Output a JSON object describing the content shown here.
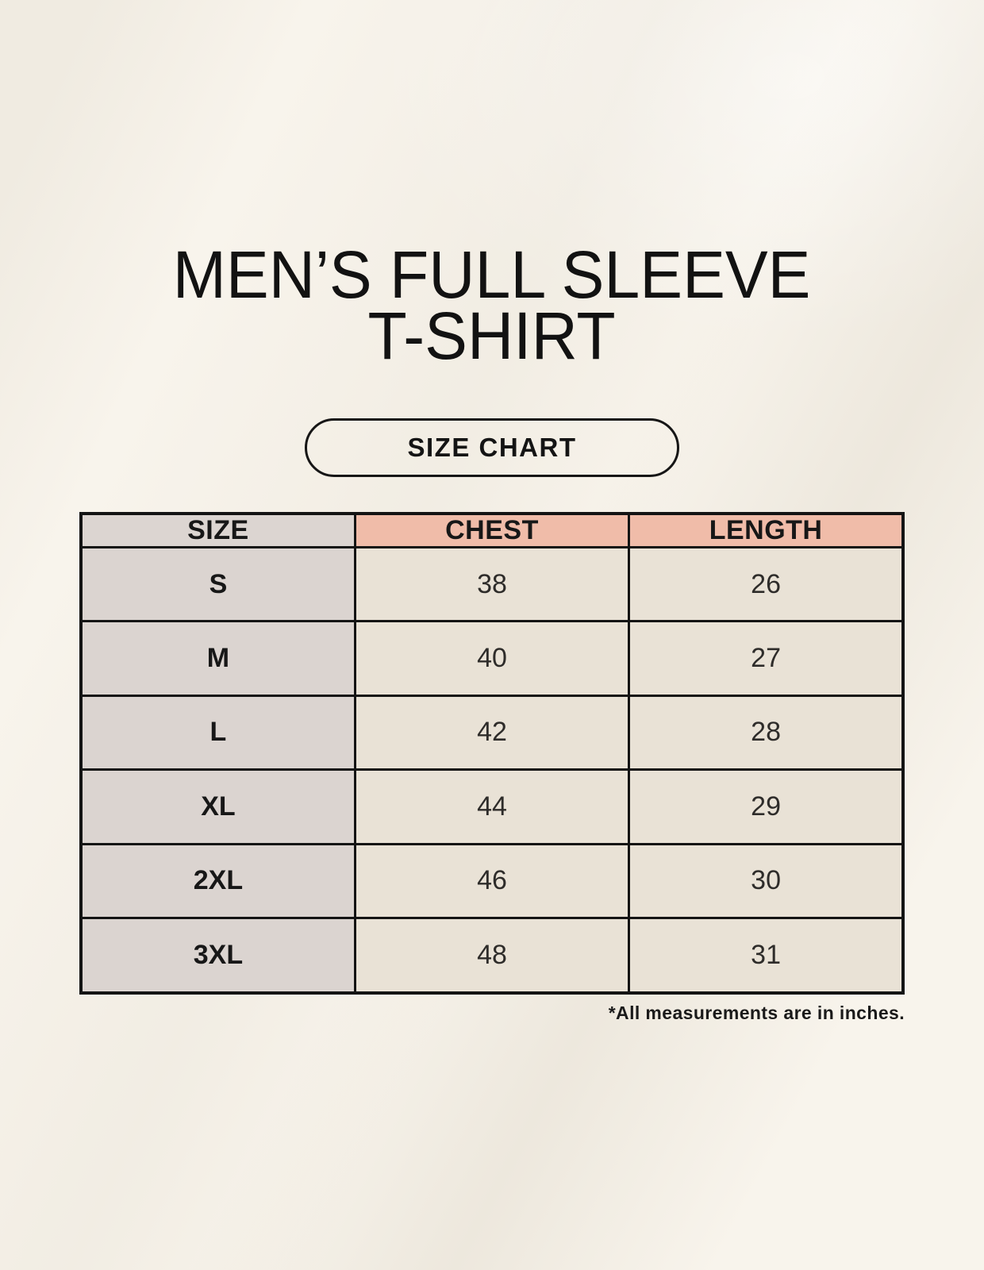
{
  "page": {
    "title_line1": "MEN’S FULL SLEEVE",
    "title_line2": "T-SHIRT",
    "size_chart_button_label": "SIZE CHART",
    "footnote": "*All measurements are in inches."
  },
  "size_table": {
    "columns": [
      "SIZE",
      "CHEST",
      "LENGTH"
    ],
    "rows": [
      {
        "size": "S",
        "chest": "38",
        "length": "26"
      },
      {
        "size": "M",
        "chest": "40",
        "length": "27"
      },
      {
        "size": "L",
        "chest": "42",
        "length": "28"
      },
      {
        "size": "XL",
        "chest": "44",
        "length": "29"
      },
      {
        "size": "2XL",
        "chest": "46",
        "length": "30"
      },
      {
        "size": "3XL",
        "chest": "48",
        "length": "31"
      }
    ],
    "units": "inches"
  },
  "colors": {
    "background": "#f8f4ec",
    "header_size_bg": "#dcd5d1",
    "header_accent_bg": "#f0bca9",
    "size_column_bg": "#dbd4d0",
    "data_cell_bg": "#e9e2d6",
    "table_border": "#141414",
    "text_dark": "#171717",
    "text_number": "#2e2c2a"
  }
}
